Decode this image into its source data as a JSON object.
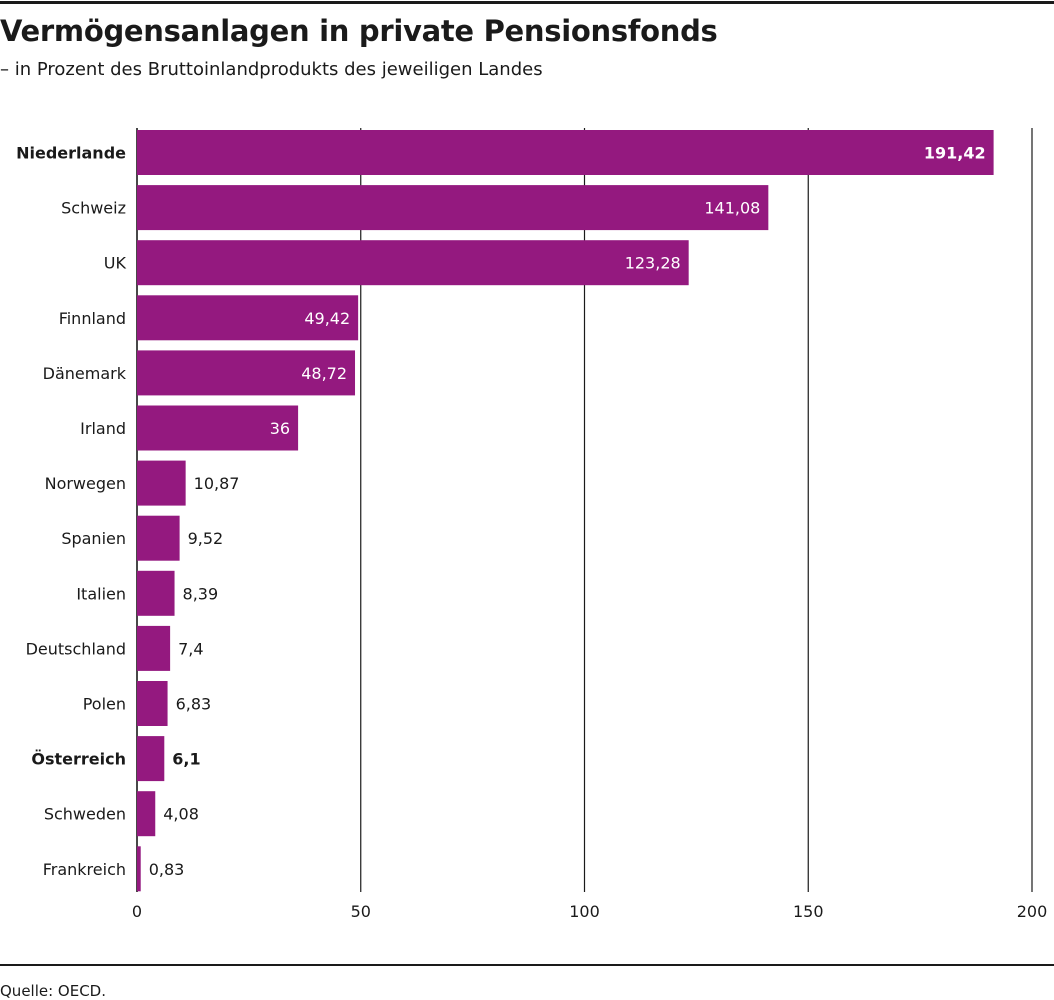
{
  "header": {
    "title": "Vermögensanlagen in private Pensionsfonds",
    "subtitle": "– in Prozent des Bruttoinlandprodukts des jeweiligen Landes"
  },
  "footer": {
    "source": "Quelle: OECD."
  },
  "colors": {
    "bar": "#94197f",
    "grid": "#1a1a1a",
    "text": "#1a1a1a",
    "label_inside": "#ffffff"
  },
  "chart_data": {
    "type": "bar",
    "orientation": "horizontal",
    "categories": [
      "Niederlande",
      "Schweiz",
      "UK",
      "Finnland",
      "Dänemark",
      "Irland",
      "Norwegen",
      "Spanien",
      "Italien",
      "Deutschland",
      "Polen",
      "Österreich",
      "Schweden",
      "Frankreich"
    ],
    "values": [
      191.42,
      141.08,
      123.28,
      49.42,
      48.72,
      36,
      10.87,
      9.52,
      8.39,
      7.4,
      6.83,
      6.1,
      4.08,
      0.83
    ],
    "value_labels": [
      "191,42",
      "141,08",
      "123,28",
      "49,42",
      "48,72",
      "36",
      "10,87",
      "9,52",
      "8,39",
      "7,4",
      "6,83",
      "6,1",
      "4,08",
      "0,83"
    ],
    "highlighted": [
      "Niederlande",
      "Österreich"
    ],
    "xlim": [
      0,
      200
    ],
    "xticks": [
      0,
      50,
      100,
      150,
      200
    ],
    "xtick_labels": [
      "0",
      "50",
      "100",
      "150",
      "200"
    ],
    "grid": true
  }
}
